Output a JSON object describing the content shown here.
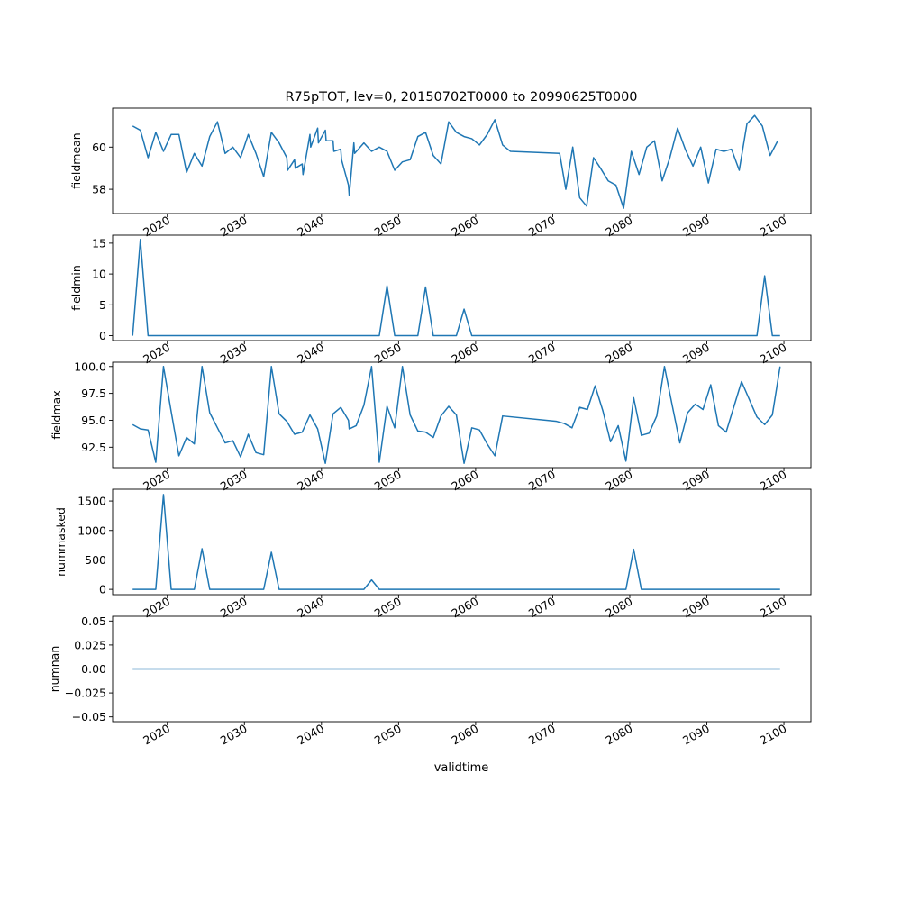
{
  "chart_data": {
    "type": "line",
    "title": "R75pTOT, lev=0, 20150702T0000 to 20990625T0000",
    "xlabel": "validtime",
    "x_range": [
      2012.9,
      2103.5
    ],
    "x_ticks": [
      2020,
      2030,
      2040,
      2050,
      2060,
      2070,
      2080,
      2090,
      2100
    ],
    "x_tick_labels": [
      "2020",
      "2030",
      "2040",
      "2050",
      "2060",
      "2070",
      "2080",
      "2090",
      "2100"
    ],
    "grid": false,
    "line_color": "#1f77b4",
    "panels": [
      {
        "ylabel": "fieldmean",
        "ylim": [
          56.85,
          61.85
        ],
        "yticks": [
          58,
          60
        ],
        "ytick_labels": [
          "58",
          "60"
        ],
        "points": [
          [
            2015.5,
            61.0
          ],
          [
            2016.5,
            60.8
          ],
          [
            2017.5,
            59.5
          ],
          [
            2018.5,
            60.7
          ],
          [
            2019.5,
            59.8
          ],
          [
            2020.5,
            60.6
          ],
          [
            2021.5,
            60.6
          ],
          [
            2022.5,
            58.8
          ],
          [
            2023.5,
            59.7
          ],
          [
            2024.5,
            59.1
          ],
          [
            2025.5,
            60.5
          ],
          [
            2026.5,
            61.2
          ],
          [
            2027.5,
            59.7
          ],
          [
            2028.5,
            60.0
          ],
          [
            2029.5,
            59.5
          ],
          [
            2030.5,
            60.6
          ],
          [
            2031.5,
            59.7
          ],
          [
            2032.5,
            58.6
          ],
          [
            2033.5,
            60.7
          ],
          [
            2034.5,
            60.2
          ],
          [
            2035.5,
            59.5
          ],
          [
            2035.6,
            58.9
          ],
          [
            2036.5,
            59.4
          ],
          [
            2036.6,
            59.0
          ],
          [
            2037.5,
            59.2
          ],
          [
            2037.6,
            58.7
          ],
          [
            2038.5,
            60.6
          ],
          [
            2038.6,
            60.0
          ],
          [
            2039.5,
            60.9
          ],
          [
            2039.6,
            60.2
          ],
          [
            2040.5,
            60.8
          ],
          [
            2040.6,
            60.3
          ],
          [
            2041.5,
            60.3
          ],
          [
            2041.6,
            59.8
          ],
          [
            2042.5,
            59.9
          ],
          [
            2042.6,
            59.4
          ],
          [
            2043.5,
            58.2
          ],
          [
            2043.6,
            57.7
          ],
          [
            2044.2,
            60.2
          ],
          [
            2044.3,
            59.7
          ],
          [
            2045.5,
            60.2
          ],
          [
            2046.5,
            59.8
          ],
          [
            2047.5,
            60.0
          ],
          [
            2048.5,
            59.8
          ],
          [
            2049.5,
            58.9
          ],
          [
            2050.5,
            59.3
          ],
          [
            2051.5,
            59.4
          ],
          [
            2052.5,
            60.5
          ],
          [
            2053.5,
            60.7
          ],
          [
            2054.5,
            59.6
          ],
          [
            2055.5,
            59.2
          ],
          [
            2056.5,
            61.2
          ],
          [
            2057.5,
            60.7
          ],
          [
            2058.5,
            60.5
          ],
          [
            2059.5,
            60.4
          ],
          [
            2060.5,
            60.1
          ],
          [
            2061.5,
            60.6
          ],
          [
            2062.5,
            61.3
          ],
          [
            2063.5,
            60.1
          ],
          [
            2064.5,
            59.8
          ],
          [
            2070.9,
            59.7
          ],
          [
            2071.7,
            58.0
          ],
          [
            2072.6,
            60.0
          ],
          [
            2073.5,
            57.6
          ],
          [
            2074.4,
            57.2
          ],
          [
            2075.3,
            59.5
          ],
          [
            2076.2,
            59.0
          ],
          [
            2077.2,
            58.4
          ],
          [
            2078.2,
            58.2
          ],
          [
            2079.2,
            57.1
          ],
          [
            2080.2,
            59.8
          ],
          [
            2081.2,
            58.7
          ],
          [
            2082.2,
            60.0
          ],
          [
            2083.2,
            60.3
          ],
          [
            2084.2,
            58.4
          ],
          [
            2085.2,
            59.5
          ],
          [
            2086.2,
            60.9
          ],
          [
            2087.2,
            59.9
          ],
          [
            2088.2,
            59.1
          ],
          [
            2089.2,
            60.0
          ],
          [
            2090.2,
            58.3
          ],
          [
            2091.2,
            59.9
          ],
          [
            2092.2,
            59.8
          ],
          [
            2093.2,
            59.9
          ],
          [
            2094.2,
            58.9
          ],
          [
            2095.2,
            61.1
          ],
          [
            2096.2,
            61.5
          ],
          [
            2097.2,
            61.0
          ],
          [
            2098.2,
            59.6
          ],
          [
            2099.2,
            60.3
          ]
        ]
      },
      {
        "ylabel": "fieldmin",
        "ylim": [
          -0.8,
          16.3
        ],
        "yticks": [
          0,
          5,
          10,
          15
        ],
        "ytick_labels": [
          "0",
          "5",
          "10",
          "15"
        ],
        "points": [
          [
            2015.5,
            0
          ],
          [
            2016.5,
            15.6
          ],
          [
            2017.5,
            0
          ],
          [
            2047.5,
            0
          ],
          [
            2048.5,
            8.1
          ],
          [
            2049.5,
            0
          ],
          [
            2052.5,
            0
          ],
          [
            2053.5,
            7.9
          ],
          [
            2054.5,
            0
          ],
          [
            2057.5,
            0
          ],
          [
            2058.5,
            4.3
          ],
          [
            2059.5,
            0
          ],
          [
            2096.5,
            0
          ],
          [
            2097.5,
            9.7
          ],
          [
            2098.5,
            0
          ],
          [
            2099.5,
            0
          ]
        ]
      },
      {
        "ylabel": "fieldmax",
        "ylim": [
          90.6,
          100.4
        ],
        "yticks": [
          92.5,
          95.0,
          97.5,
          100.0
        ],
        "ytick_labels": [
          "92.5",
          "95.0",
          "97.5",
          "100.0"
        ],
        "points": [
          [
            2015.5,
            94.6
          ],
          [
            2016.5,
            94.2
          ],
          [
            2017.5,
            94.1
          ],
          [
            2018.5,
            91.1
          ],
          [
            2019.5,
            100.0
          ],
          [
            2020.5,
            95.8
          ],
          [
            2021.5,
            91.7
          ],
          [
            2022.5,
            93.4
          ],
          [
            2023.5,
            92.8
          ],
          [
            2024.5,
            100.0
          ],
          [
            2025.5,
            95.7
          ],
          [
            2026.5,
            94.3
          ],
          [
            2027.5,
            92.9
          ],
          [
            2028.5,
            93.1
          ],
          [
            2029.5,
            91.6
          ],
          [
            2030.5,
            93.7
          ],
          [
            2031.5,
            92.0
          ],
          [
            2032.5,
            91.8
          ],
          [
            2033.5,
            100.0
          ],
          [
            2034.5,
            95.6
          ],
          [
            2035.5,
            94.9
          ],
          [
            2036.5,
            93.7
          ],
          [
            2037.5,
            93.9
          ],
          [
            2038.5,
            95.5
          ],
          [
            2039.5,
            94.2
          ],
          [
            2040.5,
            91.0
          ],
          [
            2041.5,
            95.6
          ],
          [
            2042.5,
            96.2
          ],
          [
            2043.5,
            95.0
          ],
          [
            2043.6,
            94.2
          ],
          [
            2044.5,
            94.5
          ],
          [
            2045.5,
            96.4
          ],
          [
            2046.5,
            100.0
          ],
          [
            2047.5,
            91.1
          ],
          [
            2048.5,
            96.3
          ],
          [
            2049.5,
            94.3
          ],
          [
            2050.5,
            100.0
          ],
          [
            2051.5,
            95.5
          ],
          [
            2052.5,
            94.0
          ],
          [
            2053.5,
            93.9
          ],
          [
            2054.5,
            93.4
          ],
          [
            2055.5,
            95.4
          ],
          [
            2056.5,
            96.3
          ],
          [
            2057.5,
            95.5
          ],
          [
            2058.5,
            91.0
          ],
          [
            2059.5,
            94.3
          ],
          [
            2060.5,
            94.1
          ],
          [
            2061.5,
            92.8
          ],
          [
            2062.5,
            91.7
          ],
          [
            2063.5,
            95.4
          ],
          [
            2070.5,
            94.9
          ],
          [
            2071.5,
            94.7
          ],
          [
            2072.5,
            94.3
          ],
          [
            2073.5,
            96.2
          ],
          [
            2074.5,
            96.0
          ],
          [
            2075.5,
            98.2
          ],
          [
            2076.5,
            95.9
          ],
          [
            2077.5,
            93.0
          ],
          [
            2078.5,
            94.5
          ],
          [
            2079.5,
            91.2
          ],
          [
            2080.5,
            97.1
          ],
          [
            2081.5,
            93.6
          ],
          [
            2082.5,
            93.8
          ],
          [
            2083.5,
            95.4
          ],
          [
            2084.5,
            100.0
          ],
          [
            2085.5,
            96.4
          ],
          [
            2086.5,
            92.9
          ],
          [
            2087.5,
            95.7
          ],
          [
            2088.5,
            96.5
          ],
          [
            2089.5,
            96.0
          ],
          [
            2090.5,
            98.3
          ],
          [
            2091.5,
            94.5
          ],
          [
            2092.5,
            93.9
          ],
          [
            2094.5,
            98.6
          ],
          [
            2096.5,
            95.3
          ],
          [
            2097.5,
            94.6
          ],
          [
            2098.5,
            95.5
          ],
          [
            2099.5,
            100.0
          ]
        ]
      },
      {
        "ylabel": "nummasked",
        "ylim": [
          -90,
          1700
        ],
        "yticks": [
          0,
          500,
          1000,
          1500
        ],
        "ytick_labels": [
          "0",
          "500",
          "1000",
          "1500"
        ],
        "points": [
          [
            2015.5,
            0
          ],
          [
            2018.5,
            0
          ],
          [
            2019.5,
            1610
          ],
          [
            2020.5,
            0
          ],
          [
            2023.5,
            0
          ],
          [
            2024.5,
            690
          ],
          [
            2025.5,
            0
          ],
          [
            2032.5,
            0
          ],
          [
            2033.5,
            630
          ],
          [
            2034.5,
            0
          ],
          [
            2045.5,
            0
          ],
          [
            2046.5,
            160
          ],
          [
            2047.5,
            0
          ],
          [
            2079.5,
            0
          ],
          [
            2080.5,
            680
          ],
          [
            2081.5,
            0
          ],
          [
            2099.5,
            0
          ]
        ]
      },
      {
        "ylabel": "numnan",
        "ylim": [
          -0.055,
          0.055
        ],
        "yticks": [
          -0.05,
          -0.025,
          0.0,
          0.025,
          0.05
        ],
        "ytick_labels": [
          "−0.05",
          "−0.025",
          "0.00",
          "0.025",
          "0.05"
        ],
        "points": [
          [
            2015.5,
            0.0
          ],
          [
            2099.5,
            0.0
          ]
        ]
      }
    ]
  }
}
